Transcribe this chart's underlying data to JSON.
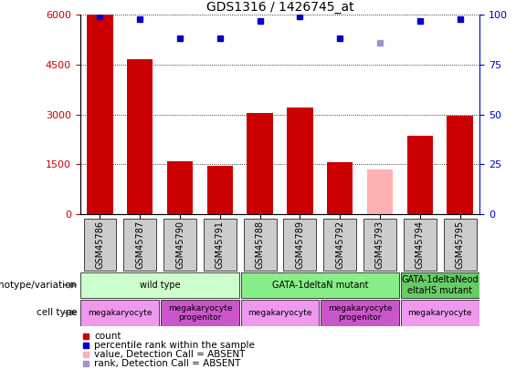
{
  "title": "GDS1316 / 1426745_at",
  "samples": [
    "GSM45786",
    "GSM45787",
    "GSM45790",
    "GSM45791",
    "GSM45788",
    "GSM45789",
    "GSM45792",
    "GSM45793",
    "GSM45794",
    "GSM45795"
  ],
  "count_values": [
    6000,
    4650,
    1600,
    1450,
    3050,
    3200,
    1550,
    1350,
    2350,
    2950
  ],
  "count_absent": [
    false,
    false,
    false,
    false,
    false,
    false,
    false,
    true,
    false,
    false
  ],
  "percentile_values": [
    99,
    98,
    88,
    88,
    97,
    99,
    88,
    86,
    97,
    98
  ],
  "percentile_absent": [
    false,
    false,
    false,
    false,
    false,
    false,
    false,
    true,
    false,
    false
  ],
  "bar_color_normal": "#cc0000",
  "bar_color_absent": "#ffb0b0",
  "dot_color_normal": "#0000cc",
  "dot_color_absent": "#9999cc",
  "ylim_left": [
    0,
    6000
  ],
  "ylim_right": [
    0,
    100
  ],
  "yticks_left": [
    0,
    1500,
    3000,
    4500,
    6000
  ],
  "yticks_right": [
    0,
    25,
    50,
    75,
    100
  ],
  "genotype_groups": [
    {
      "label": "wild type",
      "start": 0,
      "end": 4,
      "color": "#ccffcc"
    },
    {
      "label": "GATA-1deltaN mutant",
      "start": 4,
      "end": 8,
      "color": "#88ee88"
    },
    {
      "label": "GATA-1deltaNeod\neltaHS mutant",
      "start": 8,
      "end": 10,
      "color": "#66cc66"
    }
  ],
  "celltype_groups": [
    {
      "label": "megakaryocyte",
      "start": 0,
      "end": 2,
      "color": "#ee99ee"
    },
    {
      "label": "megakaryocyte\nprogenitor",
      "start": 2,
      "end": 4,
      "color": "#cc55cc"
    },
    {
      "label": "megakaryocyte",
      "start": 4,
      "end": 6,
      "color": "#ee99ee"
    },
    {
      "label": "megakaryocyte\nprogenitor",
      "start": 6,
      "end": 8,
      "color": "#cc55cc"
    },
    {
      "label": "megakaryocyte",
      "start": 8,
      "end": 10,
      "color": "#ee99ee"
    }
  ],
  "left_axis_color": "#cc0000",
  "right_axis_color": "#0000cc",
  "sample_box_color": "#cccccc",
  "legend_items": [
    {
      "color": "#cc0000",
      "marker": "s",
      "label": "count"
    },
    {
      "color": "#0000cc",
      "marker": "s",
      "label": "percentile rank within the sample"
    },
    {
      "color": "#ffb0b0",
      "marker": "s",
      "label": "value, Detection Call = ABSENT"
    },
    {
      "color": "#9999cc",
      "marker": "s",
      "label": "rank, Detection Call = ABSENT"
    }
  ]
}
